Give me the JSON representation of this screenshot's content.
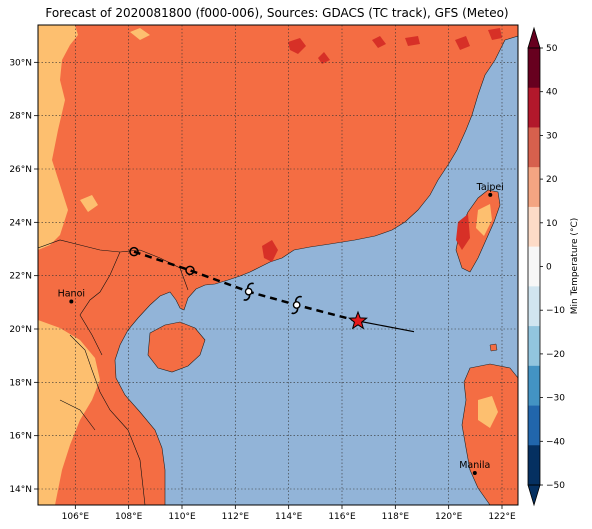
{
  "title": "Forecast of 2020081800 (f000-006), Sources: GDACS (TC track), GFS (Meteo)",
  "map": {
    "lon_range": [
      104.6,
      122.6
    ],
    "lat_range": [
      13.4,
      31.4
    ],
    "lon_ticks": [
      106,
      108,
      110,
      112,
      114,
      116,
      118,
      120,
      122
    ],
    "lat_ticks": [
      14,
      16,
      18,
      20,
      22,
      24,
      26,
      28,
      30
    ],
    "lon_tick_labels": [
      "106°E",
      "108°E",
      "110°E",
      "112°E",
      "114°E",
      "116°E",
      "118°E",
      "120°E",
      "122°E"
    ],
    "lat_tick_labels": [
      "14°N",
      "16°N",
      "18°N",
      "20°N",
      "22°N",
      "24°N",
      "26°N",
      "28°N",
      "30°N"
    ],
    "grid": true
  },
  "colorbar": {
    "label": "Min Temperature (°C)",
    "ticks": [
      "50",
      "40",
      "30",
      "20",
      "10",
      "0",
      "−10",
      "−20",
      "−30",
      "−40",
      "−50"
    ],
    "colors": [
      "#67001f",
      "#b2182b",
      "#d6604d",
      "#f4a582",
      "#fddbc7",
      "#f7f7f7",
      "#d1e5f0",
      "#92c5de",
      "#4393c3",
      "#2166ac",
      "#053061"
    ]
  },
  "fills": {
    "ocean": "#92b4d8",
    "land_main": "#f46d43",
    "land_cool": "#fdbf6f",
    "land_hot": "#d73027"
  },
  "places": [
    {
      "name": "Hanoi",
      "lon": 105.85,
      "lat": 21.03
    },
    {
      "name": "Taipei",
      "lon": 121.56,
      "lat": 25.03
    },
    {
      "name": "Manila",
      "lon": 120.98,
      "lat": 14.6
    }
  ],
  "track": {
    "past": [
      {
        "lon": 118.7,
        "lat": 19.9
      },
      {
        "lon": 116.6,
        "lat": 20.3
      }
    ],
    "forecast": [
      {
        "lon": 116.6,
        "lat": 20.3
      },
      {
        "lon": 114.3,
        "lat": 20.9
      },
      {
        "lon": 112.5,
        "lat": 21.4
      },
      {
        "lon": 110.3,
        "lat": 22.2
      },
      {
        "lon": 108.2,
        "lat": 22.9
      }
    ],
    "current": {
      "lon": 116.6,
      "lat": 20.3
    },
    "storm_symbols": [
      {
        "lon": 114.3,
        "lat": 20.9
      },
      {
        "lon": 112.5,
        "lat": 21.4
      }
    ],
    "circle_markers": [
      {
        "lon": 110.3,
        "lat": 22.2
      },
      {
        "lon": 108.2,
        "lat": 22.9
      }
    ]
  }
}
